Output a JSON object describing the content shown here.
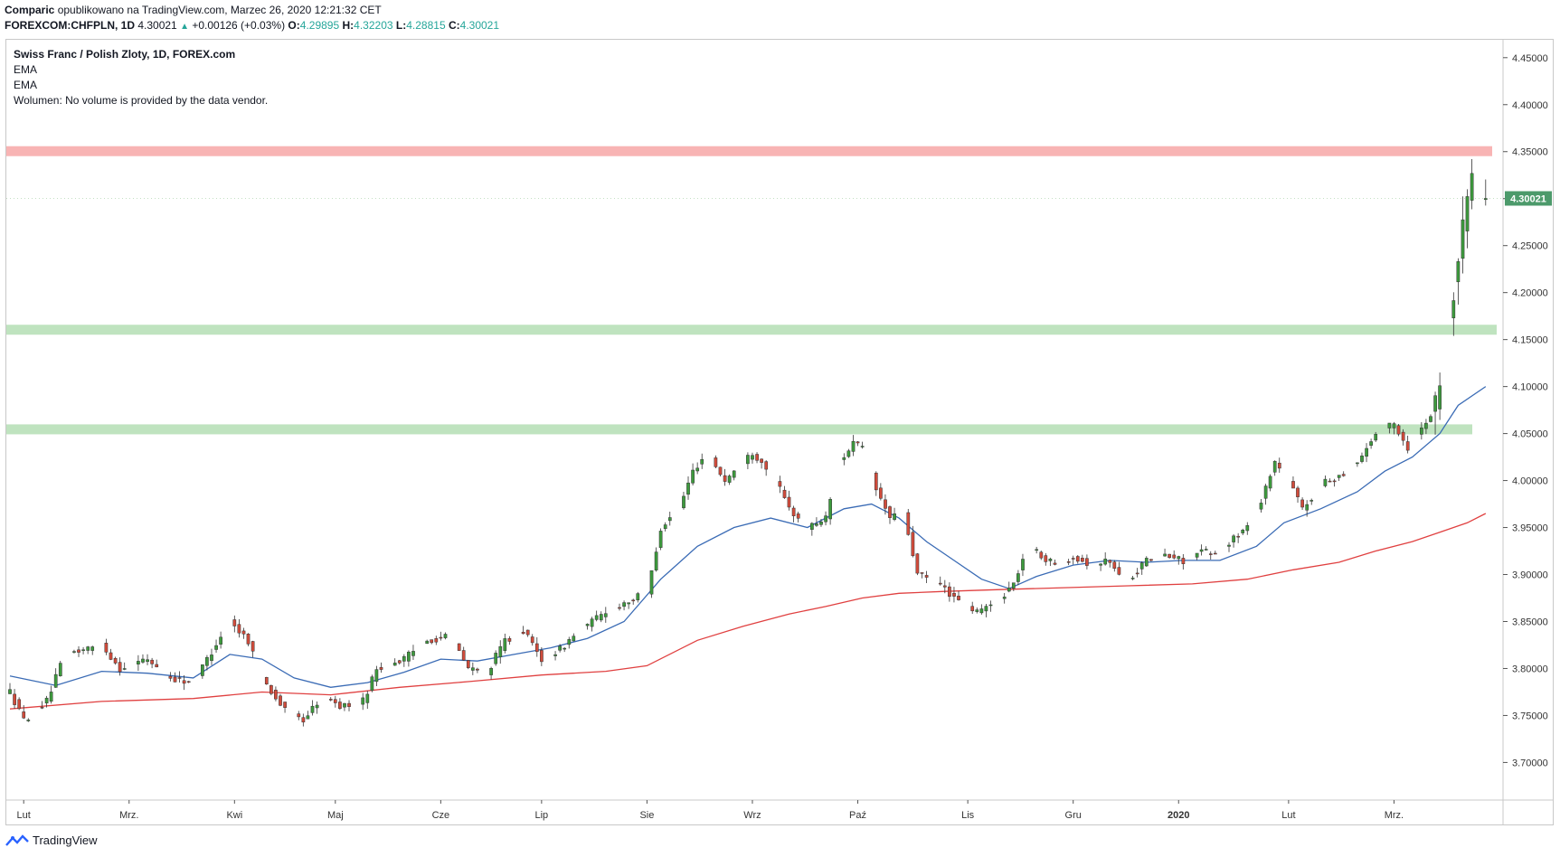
{
  "header": {
    "author": "Comparic",
    "published_text": "opublikowano na TradingView.com, Marzec 26, 2020 12:21:32 CET",
    "symbol": "FOREXCOM:CHFPLN, 1D",
    "last": "4.30021",
    "arrow": "▲",
    "change": "+0.00126 (+0.03%)",
    "o_label": "O:",
    "o": "4.29895",
    "h_label": "H:",
    "h": "4.32203",
    "l_label": "L:",
    "l": "4.28815",
    "c_label": "C:",
    "c": "4.30021"
  },
  "legend": {
    "title": "Swiss Franc / Polish Zloty, 1D, FOREX.com",
    "ema1": "EMA",
    "ema2": "EMA",
    "volume": "Wolumen: No volume is provided by the data vendor."
  },
  "chart_data": {
    "type": "candlestick",
    "symbol": "CHFPLN",
    "interval": "1D",
    "y_ticks": [
      "4.45000",
      "4.40000",
      "4.35000",
      "4.30000",
      "4.25000",
      "4.20000",
      "4.15000",
      "4.10000",
      "4.05000",
      "4.00000",
      "3.95000",
      "3.90000",
      "3.85000",
      "3.80000",
      "3.75000",
      "3.70000"
    ],
    "ylim": [
      3.66,
      4.47
    ],
    "x_labels": [
      "Lut",
      "Mrz.",
      "Kwi",
      "Maj",
      "Cze",
      "Lip",
      "Sie",
      "Wrz",
      "Paź",
      "Lis",
      "Gru",
      "2020",
      "Lut",
      "Mrz."
    ],
    "x_label_positions_days": [
      3,
      26,
      49,
      71,
      94,
      116,
      139,
      162,
      185,
      209,
      232,
      255,
      279,
      302
    ],
    "total_days": 325,
    "last_price_label": "4.30021",
    "zones": [
      {
        "name": "resistance",
        "value": 4.3505,
        "color": "#f8b4b4"
      },
      {
        "name": "support-high",
        "value": 4.1605,
        "color": "#bfe3bf"
      },
      {
        "name": "support-low",
        "value": 4.0545,
        "color": "#bfe3bf"
      }
    ],
    "price_path": [
      [
        0,
        3.775
      ],
      [
        3,
        3.745
      ],
      [
        8,
        3.765
      ],
      [
        12,
        3.815
      ],
      [
        20,
        3.825
      ],
      [
        24,
        3.8
      ],
      [
        30,
        3.81
      ],
      [
        35,
        3.79
      ],
      [
        40,
        3.785
      ],
      [
        46,
        3.835
      ],
      [
        48,
        3.85
      ],
      [
        52,
        3.83
      ],
      [
        55,
        3.79
      ],
      [
        60,
        3.755
      ],
      [
        64,
        3.745
      ],
      [
        68,
        3.77
      ],
      [
        72,
        3.76
      ],
      [
        77,
        3.765
      ],
      [
        80,
        3.8
      ],
      [
        86,
        3.81
      ],
      [
        91,
        3.83
      ],
      [
        96,
        3.835
      ],
      [
        100,
        3.8
      ],
      [
        104,
        3.795
      ],
      [
        108,
        3.83
      ],
      [
        112,
        3.84
      ],
      [
        116,
        3.81
      ],
      [
        120,
        3.82
      ],
      [
        124,
        3.84
      ],
      [
        130,
        3.86
      ],
      [
        134,
        3.87
      ],
      [
        139,
        3.88
      ],
      [
        142,
        3.95
      ],
      [
        146,
        3.97
      ],
      [
        149,
        4.01
      ],
      [
        152,
        4.03
      ],
      [
        156,
        4.0
      ],
      [
        160,
        4.02
      ],
      [
        162,
        4.03
      ],
      [
        166,
        4.01
      ],
      [
        170,
        3.97
      ],
      [
        174,
        3.95
      ],
      [
        178,
        3.96
      ],
      [
        181,
        4.02
      ],
      [
        184,
        4.04
      ],
      [
        187,
        4.03
      ],
      [
        189,
        3.99
      ],
      [
        192,
        3.96
      ],
      [
        195,
        3.965
      ],
      [
        198,
        3.9
      ],
      [
        203,
        3.89
      ],
      [
        207,
        3.87
      ],
      [
        211,
        3.86
      ],
      [
        215,
        3.87
      ],
      [
        219,
        3.89
      ],
      [
        222,
        3.93
      ],
      [
        228,
        3.91
      ],
      [
        232,
        3.92
      ],
      [
        236,
        3.91
      ],
      [
        240,
        3.915
      ],
      [
        243,
        3.89
      ],
      [
        248,
        3.915
      ],
      [
        252,
        3.92
      ],
      [
        256,
        3.915
      ],
      [
        260,
        3.925
      ],
      [
        263,
        3.92
      ],
      [
        266,
        3.935
      ],
      [
        270,
        3.95
      ],
      [
        273,
        3.98
      ],
      [
        276,
        4.02
      ],
      [
        279,
        4.0
      ],
      [
        282,
        3.97
      ],
      [
        286,
        3.995
      ],
      [
        290,
        4.005
      ],
      [
        294,
        4.02
      ],
      [
        298,
        4.05
      ],
      [
        302,
        4.06
      ],
      [
        305,
        4.035
      ],
      [
        308,
        4.055
      ],
      [
        311,
        4.08
      ],
      [
        313,
        4.145
      ],
      [
        315,
        4.205
      ],
      [
        317,
        4.27
      ],
      [
        318,
        4.3
      ],
      [
        319,
        4.33
      ],
      [
        320,
        4.36
      ],
      [
        321,
        4.34
      ],
      [
        322,
        4.3
      ]
    ],
    "ema_blue": [
      [
        0,
        3.792
      ],
      [
        10,
        3.782
      ],
      [
        20,
        3.797
      ],
      [
        30,
        3.795
      ],
      [
        40,
        3.79
      ],
      [
        48,
        3.815
      ],
      [
        55,
        3.81
      ],
      [
        62,
        3.79
      ],
      [
        70,
        3.78
      ],
      [
        78,
        3.785
      ],
      [
        86,
        3.796
      ],
      [
        94,
        3.81
      ],
      [
        102,
        3.808
      ],
      [
        110,
        3.815
      ],
      [
        118,
        3.822
      ],
      [
        126,
        3.832
      ],
      [
        134,
        3.85
      ],
      [
        142,
        3.895
      ],
      [
        150,
        3.93
      ],
      [
        158,
        3.95
      ],
      [
        166,
        3.96
      ],
      [
        174,
        3.95
      ],
      [
        182,
        3.97
      ],
      [
        188,
        3.975
      ],
      [
        194,
        3.96
      ],
      [
        200,
        3.935
      ],
      [
        206,
        3.915
      ],
      [
        212,
        3.895
      ],
      [
        218,
        3.885
      ],
      [
        224,
        3.898
      ],
      [
        232,
        3.91
      ],
      [
        240,
        3.915
      ],
      [
        248,
        3.913
      ],
      [
        256,
        3.915
      ],
      [
        264,
        3.915
      ],
      [
        272,
        3.93
      ],
      [
        278,
        3.955
      ],
      [
        286,
        3.97
      ],
      [
        294,
        3.988
      ],
      [
        300,
        4.01
      ],
      [
        306,
        4.025
      ],
      [
        312,
        4.05
      ],
      [
        316,
        4.08
      ],
      [
        322,
        4.1
      ]
    ],
    "ema_red": [
      [
        0,
        3.757
      ],
      [
        20,
        3.765
      ],
      [
        40,
        3.768
      ],
      [
        55,
        3.775
      ],
      [
        70,
        3.772
      ],
      [
        85,
        3.78
      ],
      [
        100,
        3.786
      ],
      [
        116,
        3.793
      ],
      [
        130,
        3.797
      ],
      [
        139,
        3.803
      ],
      [
        150,
        3.83
      ],
      [
        160,
        3.845
      ],
      [
        170,
        3.858
      ],
      [
        178,
        3.866
      ],
      [
        186,
        3.875
      ],
      [
        194,
        3.88
      ],
      [
        204,
        3.882
      ],
      [
        216,
        3.884
      ],
      [
        230,
        3.886
      ],
      [
        244,
        3.888
      ],
      [
        258,
        3.89
      ],
      [
        270,
        3.895
      ],
      [
        280,
        3.905
      ],
      [
        290,
        3.913
      ],
      [
        298,
        3.925
      ],
      [
        306,
        3.935
      ],
      [
        312,
        3.945
      ],
      [
        318,
        3.955
      ],
      [
        322,
        3.965
      ]
    ]
  },
  "footer": {
    "brand": "TradingView"
  }
}
